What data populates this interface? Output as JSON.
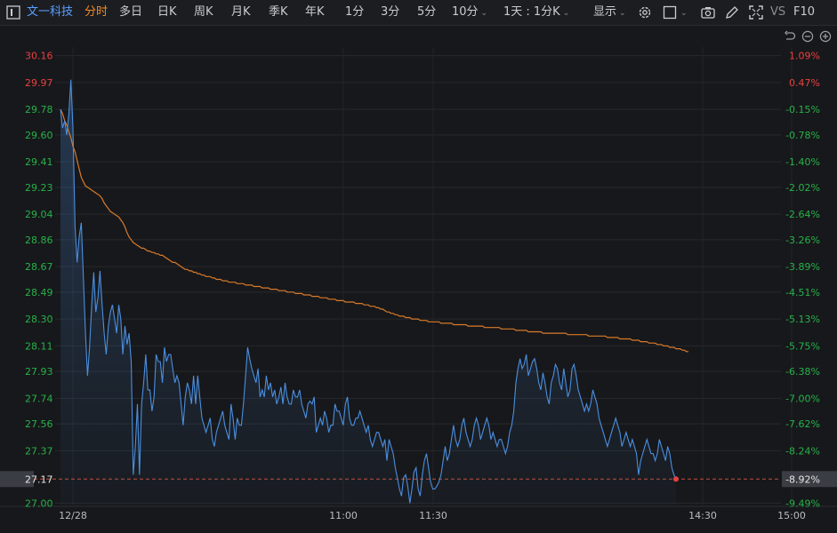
{
  "toolbar": {
    "stock_name": "文一科技",
    "tabs": [
      "分时",
      "多日",
      "日K",
      "周K",
      "月K",
      "季K",
      "年K",
      "1分",
      "3分",
      "5分",
      "10分"
    ],
    "active_tab": "分时",
    "period_select": "1天 : 1分K",
    "display_label": "显示",
    "vs_label": "VS",
    "f10_label": "F10",
    "icons": [
      "settings-icon",
      "checkbox-icon",
      "camera-icon",
      "pencil-icon",
      "fullscreen-icon"
    ]
  },
  "chart_data": {
    "type": "line",
    "left_ticks": [
      "30.16",
      "29.97",
      "29.78",
      "29.60",
      "29.41",
      "29.23",
      "29.04",
      "28.86",
      "28.67",
      "28.49",
      "28.30",
      "28.11",
      "27.93",
      "27.74",
      "27.56",
      "27.37",
      "27.17",
      "27.00"
    ],
    "right_ticks": [
      "1.09%",
      "0.47%",
      "-0.15%",
      "-0.78%",
      "-1.40%",
      "-2.02%",
      "-2.64%",
      "-3.26%",
      "-3.89%",
      "-4.51%",
      "-5.13%",
      "-5.75%",
      "-6.38%",
      "-7.00%",
      "-7.62%",
      "-8.24%",
      "-8.92%",
      "-9.49%"
    ],
    "x_labels": [
      "12/28",
      "11:00",
      "11:30",
      "14:30",
      "15:00"
    ],
    "ylim": [
      26.99,
      30.22
    ],
    "current_price": 27.17,
    "current_change": "-8.92%",
    "up_color": "#e84141",
    "down_color": "#27b24a",
    "price_color": "#4a8fe0",
    "avg_color": "#d97a2b",
    "price_series": [
      29.78,
      29.65,
      29.7,
      29.6,
      29.75,
      29.99,
      29.65,
      28.95,
      28.7,
      28.88,
      28.98,
      28.6,
      28.2,
      27.9,
      28.1,
      28.4,
      28.63,
      28.35,
      28.45,
      28.64,
      28.4,
      28.2,
      28.05,
      28.25,
      28.35,
      28.4,
      28.3,
      28.2,
      28.4,
      28.3,
      28.05,
      28.25,
      28.12,
      28.2,
      28.0,
      27.2,
      27.4,
      27.7,
      27.2,
      27.7,
      27.85,
      28.05,
      27.8,
      27.8,
      27.65,
      27.75,
      28.05,
      28.0,
      28.0,
      27.85,
      28.1,
      28.0,
      28.05,
      28.05,
      27.95,
      27.85,
      27.9,
      27.85,
      27.7,
      27.55,
      27.75,
      27.85,
      27.8,
      27.7,
      27.9,
      27.7,
      27.9,
      27.75,
      27.6,
      27.55,
      27.5,
      27.55,
      27.6,
      27.45,
      27.4,
      27.5,
      27.55,
      27.6,
      27.65,
      27.55,
      27.5,
      27.45,
      27.7,
      27.6,
      27.45,
      27.6,
      27.55,
      27.55,
      27.7,
      27.9,
      28.1,
      28.02,
      27.95,
      27.9,
      27.85,
      27.95,
      27.75,
      27.8,
      27.75,
      27.9,
      27.8,
      27.85,
      27.75,
      27.8,
      27.7,
      27.75,
      27.82,
      27.7,
      27.85,
      27.75,
      27.7,
      27.7,
      27.8,
      27.75,
      27.75,
      27.8,
      27.7,
      27.65,
      27.6,
      27.7,
      27.72,
      27.7,
      27.75,
      27.5,
      27.55,
      27.6,
      27.55,
      27.65,
      27.6,
      27.5,
      27.55,
      27.55,
      27.7,
      27.65,
      27.65,
      27.6,
      27.55,
      27.7,
      27.75,
      27.6,
      27.55,
      27.55,
      27.6,
      27.6,
      27.65,
      27.6,
      27.55,
      27.5,
      27.55,
      27.45,
      27.4,
      27.45,
      27.5,
      27.5,
      27.45,
      27.4,
      27.45,
      27.3,
      27.45,
      27.4,
      27.35,
      27.25,
      27.18,
      27.1,
      27.05,
      27.18,
      27.2,
      27.12,
      27.0,
      27.1,
      27.22,
      27.25,
      27.1,
      27.05,
      27.2,
      27.3,
      27.35,
      27.25,
      27.15,
      27.1,
      27.1,
      27.12,
      27.15,
      27.2,
      27.3,
      27.4,
      27.3,
      27.35,
      27.45,
      27.55,
      27.45,
      27.4,
      27.45,
      27.55,
      27.6,
      27.5,
      27.45,
      27.4,
      27.45,
      27.55,
      27.6,
      27.55,
      27.45,
      27.5,
      27.55,
      27.6,
      27.55,
      27.45,
      27.5,
      27.45,
      27.4,
      27.45,
      27.45,
      27.4,
      27.35,
      27.4,
      27.5,
      27.55,
      27.65,
      27.85,
      27.95,
      28.02,
      27.95,
      27.98,
      28.05,
      27.9,
      27.95,
      28.0,
      28.02,
      27.95,
      27.85,
      27.8,
      27.92,
      27.85,
      27.75,
      27.7,
      27.85,
      27.9,
      27.98,
      27.95,
      27.85,
      27.8,
      27.95,
      27.85,
      27.75,
      27.8,
      27.95,
      27.98,
      27.9,
      27.8,
      27.75,
      27.7,
      27.65,
      27.7,
      27.65,
      27.7,
      27.8,
      27.75,
      27.7,
      27.6,
      27.55,
      27.5,
      27.45,
      27.4,
      27.45,
      27.5,
      27.55,
      27.6,
      27.55,
      27.5,
      27.4,
      27.45,
      27.5,
      27.45,
      27.4,
      27.45,
      27.4,
      27.35,
      27.2,
      27.3,
      27.35,
      27.4,
      27.45,
      27.4,
      27.35,
      27.35,
      27.3,
      27.35,
      27.45,
      27.4,
      27.35,
      27.3,
      27.4,
      27.35,
      27.25,
      27.2,
      27.17
    ],
    "avg_series": [
      29.78,
      29.75,
      29.7,
      29.67,
      29.62,
      29.58,
      29.52,
      29.48,
      29.42,
      29.36,
      29.3,
      29.27,
      29.24,
      29.23,
      29.22,
      29.21,
      29.2,
      29.19,
      29.18,
      29.17,
      29.15,
      29.12,
      29.1,
      29.08,
      29.06,
      29.05,
      29.04,
      29.03,
      29.02,
      29.0,
      28.98,
      28.95,
      28.91,
      28.88,
      28.86,
      28.84,
      28.83,
      28.82,
      28.81,
      28.8,
      28.8,
      28.79,
      28.78,
      28.78,
      28.77,
      28.77,
      28.76,
      28.76,
      28.75,
      28.75,
      28.74,
      28.73,
      28.72,
      28.71,
      28.7,
      28.7,
      28.69,
      28.68,
      28.67,
      28.66,
      28.65,
      28.65,
      28.64,
      28.64,
      28.63,
      28.63,
      28.62,
      28.62,
      28.61,
      28.61,
      28.6,
      28.6,
      28.6,
      28.59,
      28.59,
      28.58,
      28.58,
      28.58,
      28.57,
      28.57,
      28.57,
      28.56,
      28.56,
      28.56,
      28.56,
      28.55,
      28.55,
      28.55,
      28.55,
      28.54,
      28.54,
      28.54,
      28.54,
      28.53,
      28.53,
      28.53,
      28.53,
      28.52,
      28.52,
      28.52,
      28.52,
      28.51,
      28.51,
      28.51,
      28.51,
      28.5,
      28.5,
      28.5,
      28.5,
      28.49,
      28.49,
      28.49,
      28.49,
      28.48,
      28.48,
      28.48,
      28.48,
      28.47,
      28.47,
      28.47,
      28.47,
      28.46,
      28.46,
      28.46,
      28.46,
      28.45,
      28.45,
      28.45,
      28.45,
      28.44,
      28.44,
      28.44,
      28.44,
      28.43,
      28.43,
      28.43,
      28.43,
      28.42,
      28.42,
      28.42,
      28.42,
      28.42,
      28.41,
      28.41,
      28.41,
      28.41,
      28.4,
      28.4,
      28.4,
      28.39,
      28.39,
      28.39,
      28.38,
      28.38,
      28.37,
      28.37,
      28.36,
      28.35,
      28.35,
      28.34,
      28.34,
      28.33,
      28.33,
      28.32,
      28.32,
      28.32,
      28.31,
      28.31,
      28.31,
      28.3,
      28.3,
      28.3,
      28.3,
      28.29,
      28.29,
      28.29,
      28.29,
      28.28,
      28.28,
      28.28,
      28.28,
      28.28,
      28.28,
      28.27,
      28.27,
      28.27,
      28.27,
      28.27,
      28.27,
      28.26,
      28.26,
      28.26,
      28.26,
      28.26,
      28.26,
      28.26,
      28.25,
      28.25,
      28.25,
      28.25,
      28.25,
      28.25,
      28.25,
      28.25,
      28.24,
      28.24,
      28.24,
      28.24,
      28.24,
      28.24,
      28.24,
      28.24,
      28.23,
      28.23,
      28.23,
      28.23,
      28.23,
      28.23,
      28.23,
      28.22,
      28.22,
      28.22,
      28.22,
      28.22,
      28.22,
      28.21,
      28.21,
      28.21,
      28.21,
      28.21,
      28.21,
      28.21,
      28.2,
      28.2,
      28.2,
      28.2,
      28.2,
      28.2,
      28.2,
      28.2,
      28.2,
      28.2,
      28.2,
      28.2,
      28.19,
      28.19,
      28.19,
      28.19,
      28.19,
      28.19,
      28.19,
      28.19,
      28.19,
      28.19,
      28.18,
      28.18,
      28.18,
      28.18,
      28.18,
      28.18,
      28.18,
      28.18,
      28.18,
      28.17,
      28.17,
      28.17,
      28.17,
      28.17,
      28.17,
      28.16,
      28.16,
      28.16,
      28.16,
      28.16,
      28.16,
      28.15,
      28.15,
      28.15,
      28.15,
      28.14,
      28.14,
      28.14,
      28.14,
      28.13,
      28.13,
      28.13,
      28.13,
      28.12,
      28.12,
      28.12,
      28.11,
      28.11,
      28.11,
      28.1,
      28.1,
      28.1,
      28.09,
      28.09,
      28.09,
      28.08,
      28.08,
      28.07,
      28.07
    ]
  }
}
